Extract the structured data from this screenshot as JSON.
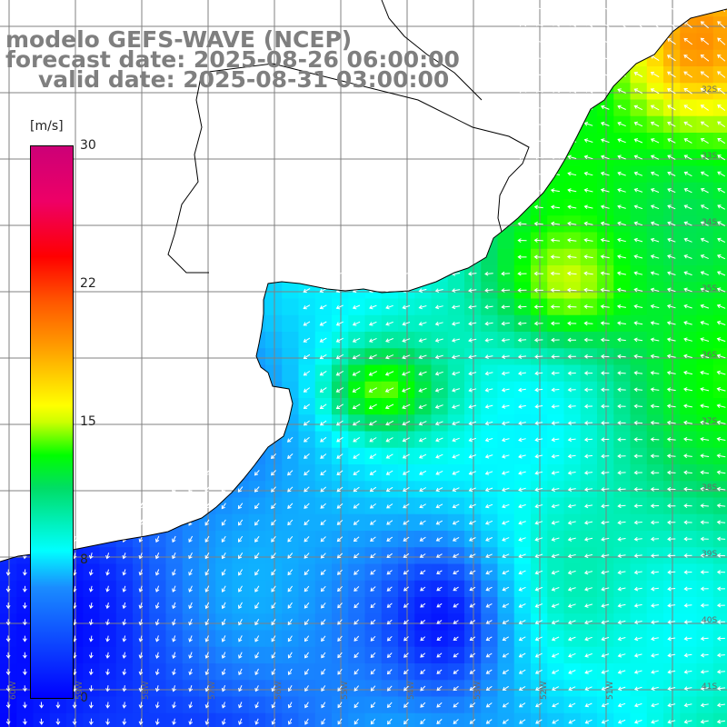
{
  "title": {
    "line1": "modelo GEFS-WAVE (NCEP)",
    "line2": "forecast date: 2025-08-26 06:00:00",
    "line3": "valid date: 2025-08-31 03:00:00"
  },
  "colorbar": {
    "unit": "[m/s]",
    "ticks": [
      "30",
      "22",
      "15",
      "8",
      "0"
    ],
    "min": 0,
    "max": 30,
    "colors": [
      "#0000ff",
      "#1a8cff",
      "#00ffff",
      "#00dd66",
      "#00ff00",
      "#ccff00",
      "#ffff00",
      "#ff9900",
      "#ff0000",
      "#cc0077"
    ]
  },
  "lat_labels": [
    "32S",
    "33S",
    "34S",
    "35S",
    "36S",
    "37S",
    "38S",
    "39S",
    "40S",
    "41S"
  ],
  "lon_labels": [
    "60W",
    "59W",
    "58W",
    "57W",
    "56W",
    "55W",
    "54W",
    "53W",
    "52W",
    "51W"
  ],
  "wind": {
    "general_direction": "from northeast",
    "calm_region": "southwest"
  },
  "colors": {
    "title": "#7f7f7f",
    "coastline": "#000000",
    "grid": "#808080",
    "arrows": "#ffffff",
    "land": "#ffffff"
  }
}
